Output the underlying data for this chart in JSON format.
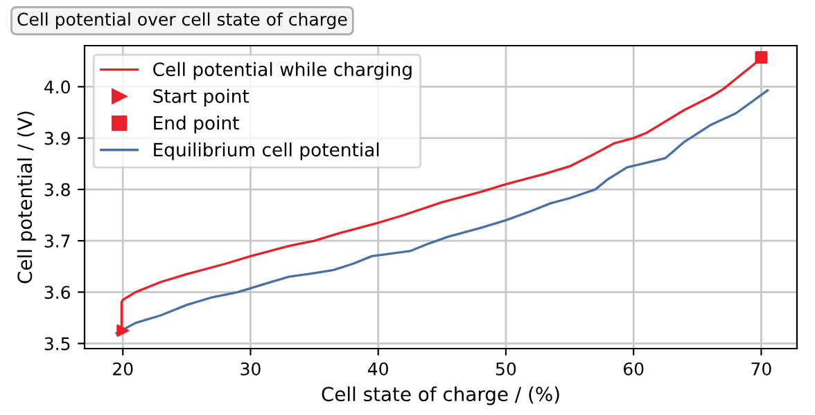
{
  "chart_data": {
    "type": "line",
    "title": "Cell potential over cell state of charge",
    "xlabel": "Cell state of charge / (%)",
    "ylabel": "Cell potential / (V)",
    "xlim": [
      17,
      72.8
    ],
    "xticks": [
      20,
      30,
      40,
      50,
      60,
      70
    ],
    "ylim": [
      3.49,
      4.08
    ],
    "yticks": [
      3.5,
      3.6,
      3.7,
      3.8,
      3.9,
      {
        "value": 4.0,
        "label": "4.0"
      }
    ],
    "grid": true,
    "legend": "top left",
    "series": [
      {
        "name": "Cell potential while charging",
        "color": "#e8202a",
        "x": [
          19.9,
          19.9,
          20,
          21,
          23,
          25,
          28,
          30,
          33,
          35,
          37,
          40,
          42,
          45,
          48,
          50,
          53,
          55,
          57,
          58.5,
          60,
          61,
          62,
          64,
          66,
          67,
          68,
          70
        ],
        "values": [
          3.525,
          3.58,
          3.585,
          3.6,
          3.62,
          3.635,
          3.655,
          3.67,
          3.69,
          3.7,
          3.715,
          3.735,
          3.75,
          3.775,
          3.795,
          3.81,
          3.83,
          3.845,
          3.87,
          3.89,
          3.9,
          3.91,
          3.925,
          3.955,
          3.98,
          3.995,
          4.015,
          4.055
        ]
      },
      {
        "name": "Start point",
        "type": "scatter",
        "marker": "triangle",
        "color": "#e8202a",
        "x": [
          20
        ],
        "values": [
          3.525
        ]
      },
      {
        "name": "End point",
        "type": "scatter",
        "marker": "square",
        "color": "#e8202a",
        "x": [
          70
        ],
        "values": [
          4.057
        ]
      },
      {
        "name": "Equilibrium cell potential",
        "color": "#4a6fa5",
        "x": [
          19.5,
          21,
          23,
          25,
          27,
          29,
          31,
          33,
          35,
          36.5,
          38,
          39.5,
          41,
          42.5,
          44,
          45.5,
          48,
          50,
          52,
          53.5,
          55,
          57,
          58,
          59.5,
          61,
          62.5,
          64,
          66,
          68,
          70.5
        ],
        "values": [
          3.52,
          3.54,
          3.555,
          3.575,
          3.59,
          3.6,
          3.615,
          3.63,
          3.637,
          3.643,
          3.655,
          3.67,
          3.675,
          3.68,
          3.695,
          3.708,
          3.725,
          3.74,
          3.758,
          3.773,
          3.783,
          3.8,
          3.82,
          3.843,
          3.852,
          3.861,
          3.893,
          3.925,
          3.948,
          3.993
        ]
      }
    ]
  }
}
